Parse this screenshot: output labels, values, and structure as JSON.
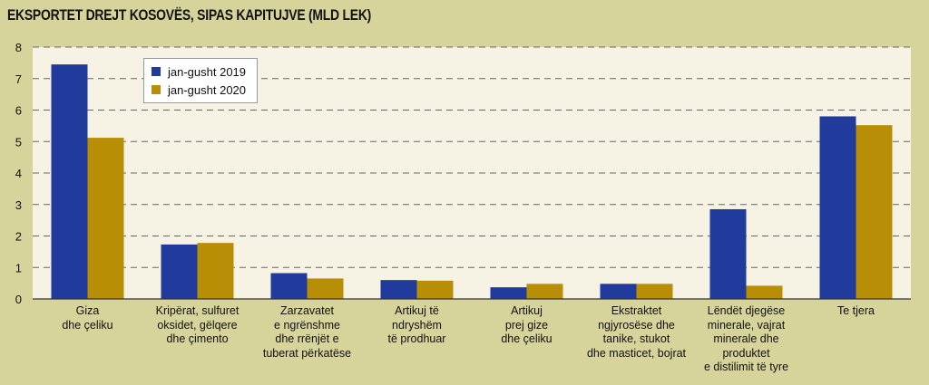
{
  "colors": {
    "background": "#d6d49a",
    "plot_area": "#f6f3e4",
    "series_2019": "#203b9c",
    "series_2020": "#b98e07"
  },
  "chart_data": {
    "type": "bar",
    "title": "EKSPORTET DREJT KOSOVËS, SIPAS KAPITUJVE (MLD LEK)",
    "xlabel": "",
    "ylabel": "",
    "ylim": [
      0,
      8
    ],
    "yticks": [
      "0",
      "1",
      "2",
      "3",
      "4",
      "5",
      "6",
      "7",
      "8"
    ],
    "grid": "horizontal dashed",
    "legend_position": "top-left",
    "categories": [
      [
        "Giza",
        "dhe çeliku"
      ],
      [
        "Kripërat, sulfuret",
        "oksidet, gëlqere",
        "dhe çimento"
      ],
      [
        "Zarzavatet",
        "e ngrënshme",
        "dhe rrënjët e",
        "tuberat përkatëse"
      ],
      [
        "Artikuj të",
        "ndryshëm",
        "të prodhuar"
      ],
      [
        "Artikuj",
        "prej gize",
        "dhe çeliku"
      ],
      [
        "Ekstraktet",
        "ngjyrosëse dhe",
        "tanike, stukot",
        "dhe masticet, bojrat"
      ],
      [
        "Lëndët djegëse",
        "minerale, vajrat",
        "minerale dhe",
        "produktet",
        "e distilimit të tyre"
      ],
      [
        "Te tjera"
      ]
    ],
    "series": [
      {
        "name": "jan-gusht 2019",
        "values": [
          7.45,
          1.73,
          0.82,
          0.6,
          0.37,
          0.48,
          2.85,
          5.8
        ]
      },
      {
        "name": "jan-gusht 2020",
        "values": [
          5.12,
          1.78,
          0.65,
          0.58,
          0.48,
          0.48,
          0.42,
          5.52
        ]
      }
    ]
  }
}
